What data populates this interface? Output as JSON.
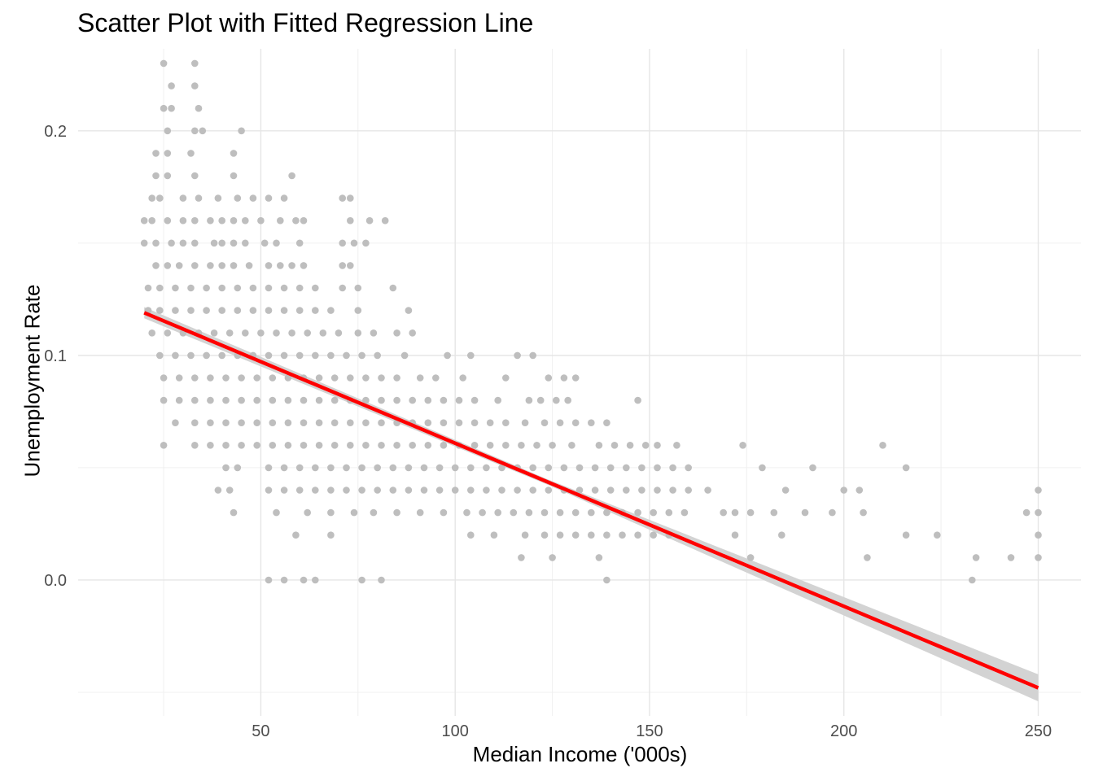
{
  "chart_data": {
    "type": "scatter",
    "title": "Scatter Plot with Fitted Regression Line",
    "xlabel": "Median Income ('000s)",
    "ylabel": "Unemployment Rate",
    "xlim": [
      3,
      261
    ],
    "ylim": [
      -0.0605,
      0.2365
    ],
    "x_ticks": [
      50,
      100,
      150,
      200,
      250
    ],
    "y_ticks": [
      0.0,
      0.1,
      0.2
    ],
    "x_tick_labels": [
      "50",
      "100",
      "150",
      "200",
      "250"
    ],
    "y_tick_labels": [
      "0.0",
      "0.1",
      "0.2"
    ],
    "grid": true,
    "point_color": "#bebebe",
    "line_color": "#ff0000",
    "band_color": "#d3d3d3",
    "fit": {
      "x_start": 20,
      "y_start": 0.119,
      "x_end": 250,
      "y_end": -0.048,
      "se_start": 0.0025,
      "se_mid": 0.0012,
      "se_end": 0.006
    },
    "points": [
      [
        25,
        0.23
      ],
      [
        33,
        0.23
      ],
      [
        27,
        0.22
      ],
      [
        33,
        0.22
      ],
      [
        25,
        0.21
      ],
      [
        27,
        0.21
      ],
      [
        34,
        0.21
      ],
      [
        26,
        0.2
      ],
      [
        33,
        0.2
      ],
      [
        35,
        0.2
      ],
      [
        45,
        0.2
      ],
      [
        23,
        0.19
      ],
      [
        26,
        0.19
      ],
      [
        32,
        0.19
      ],
      [
        43,
        0.19
      ],
      [
        23,
        0.18
      ],
      [
        26,
        0.18
      ],
      [
        33,
        0.18
      ],
      [
        43,
        0.18
      ],
      [
        58,
        0.18
      ],
      [
        22,
        0.17
      ],
      [
        24,
        0.17
      ],
      [
        30,
        0.17
      ],
      [
        34,
        0.17
      ],
      [
        39,
        0.17
      ],
      [
        44,
        0.17
      ],
      [
        48,
        0.17
      ],
      [
        52,
        0.17
      ],
      [
        56,
        0.17
      ],
      [
        71,
        0.17
      ],
      [
        73,
        0.17
      ],
      [
        20,
        0.16
      ],
      [
        22,
        0.16
      ],
      [
        26,
        0.16
      ],
      [
        30,
        0.16
      ],
      [
        33,
        0.16
      ],
      [
        37,
        0.16
      ],
      [
        40,
        0.16
      ],
      [
        43,
        0.16
      ],
      [
        46,
        0.16
      ],
      [
        50,
        0.16
      ],
      [
        55,
        0.16
      ],
      [
        59,
        0.16
      ],
      [
        61,
        0.16
      ],
      [
        73,
        0.16
      ],
      [
        78,
        0.16
      ],
      [
        82,
        0.16
      ],
      [
        20,
        0.15
      ],
      [
        23,
        0.15
      ],
      [
        27,
        0.15
      ],
      [
        30,
        0.15
      ],
      [
        33,
        0.15
      ],
      [
        38,
        0.15
      ],
      [
        40,
        0.15
      ],
      [
        43,
        0.15
      ],
      [
        46,
        0.15
      ],
      [
        51,
        0.15
      ],
      [
        54,
        0.15
      ],
      [
        60,
        0.15
      ],
      [
        71,
        0.15
      ],
      [
        74,
        0.15
      ],
      [
        77,
        0.15
      ],
      [
        23,
        0.14
      ],
      [
        26,
        0.14
      ],
      [
        29,
        0.14
      ],
      [
        33,
        0.14
      ],
      [
        37,
        0.14
      ],
      [
        40,
        0.14
      ],
      [
        43,
        0.14
      ],
      [
        47,
        0.14
      ],
      [
        52,
        0.14
      ],
      [
        55,
        0.14
      ],
      [
        58,
        0.14
      ],
      [
        61,
        0.14
      ],
      [
        71,
        0.14
      ],
      [
        73,
        0.14
      ],
      [
        21,
        0.13
      ],
      [
        24,
        0.13
      ],
      [
        28,
        0.13
      ],
      [
        32,
        0.13
      ],
      [
        36,
        0.13
      ],
      [
        40,
        0.13
      ],
      [
        44,
        0.13
      ],
      [
        48,
        0.13
      ],
      [
        52,
        0.13
      ],
      [
        56,
        0.13
      ],
      [
        60,
        0.13
      ],
      [
        64,
        0.13
      ],
      [
        71,
        0.13
      ],
      [
        75,
        0.13
      ],
      [
        84,
        0.13
      ],
      [
        21,
        0.12
      ],
      [
        24,
        0.12
      ],
      [
        28,
        0.12
      ],
      [
        32,
        0.12
      ],
      [
        36,
        0.12
      ],
      [
        40,
        0.12
      ],
      [
        44,
        0.12
      ],
      [
        48,
        0.12
      ],
      [
        52,
        0.12
      ],
      [
        56,
        0.12
      ],
      [
        60,
        0.12
      ],
      [
        64,
        0.12
      ],
      [
        68,
        0.12
      ],
      [
        75,
        0.12
      ],
      [
        88,
        0.12
      ],
      [
        22,
        0.11
      ],
      [
        26,
        0.11
      ],
      [
        30,
        0.11
      ],
      [
        34,
        0.11
      ],
      [
        38,
        0.11
      ],
      [
        42,
        0.11
      ],
      [
        46,
        0.11
      ],
      [
        50,
        0.11
      ],
      [
        54,
        0.11
      ],
      [
        58,
        0.11
      ],
      [
        62,
        0.11
      ],
      [
        66,
        0.11
      ],
      [
        70,
        0.11
      ],
      [
        75,
        0.11
      ],
      [
        79,
        0.11
      ],
      [
        85,
        0.11
      ],
      [
        89,
        0.11
      ],
      [
        24,
        0.1
      ],
      [
        28,
        0.1
      ],
      [
        32,
        0.1
      ],
      [
        36,
        0.1
      ],
      [
        40,
        0.1
      ],
      [
        44,
        0.1
      ],
      [
        48,
        0.1
      ],
      [
        52,
        0.1
      ],
      [
        56,
        0.1
      ],
      [
        60,
        0.1
      ],
      [
        64,
        0.1
      ],
      [
        68,
        0.1
      ],
      [
        72,
        0.1
      ],
      [
        76,
        0.1
      ],
      [
        80,
        0.1
      ],
      [
        87,
        0.1
      ],
      [
        98,
        0.1
      ],
      [
        104,
        0.1
      ],
      [
        116,
        0.1
      ],
      [
        120,
        0.1
      ],
      [
        25,
        0.09
      ],
      [
        29,
        0.09
      ],
      [
        33,
        0.09
      ],
      [
        37,
        0.09
      ],
      [
        41,
        0.09
      ],
      [
        45,
        0.09
      ],
      [
        49,
        0.09
      ],
      [
        53,
        0.09
      ],
      [
        57,
        0.09
      ],
      [
        61,
        0.09
      ],
      [
        65,
        0.09
      ],
      [
        69,
        0.09
      ],
      [
        73,
        0.09
      ],
      [
        77,
        0.09
      ],
      [
        81,
        0.09
      ],
      [
        85,
        0.09
      ],
      [
        91,
        0.09
      ],
      [
        95,
        0.09
      ],
      [
        102,
        0.09
      ],
      [
        113,
        0.09
      ],
      [
        124,
        0.09
      ],
      [
        128,
        0.09
      ],
      [
        131,
        0.09
      ],
      [
        25,
        0.08
      ],
      [
        29,
        0.08
      ],
      [
        33,
        0.08
      ],
      [
        37,
        0.08
      ],
      [
        41,
        0.08
      ],
      [
        45,
        0.08
      ],
      [
        49,
        0.08
      ],
      [
        53,
        0.08
      ],
      [
        57,
        0.08
      ],
      [
        61,
        0.08
      ],
      [
        65,
        0.08
      ],
      [
        69,
        0.08
      ],
      [
        73,
        0.08
      ],
      [
        77,
        0.08
      ],
      [
        81,
        0.08
      ],
      [
        85,
        0.08
      ],
      [
        89,
        0.08
      ],
      [
        93,
        0.08
      ],
      [
        97,
        0.08
      ],
      [
        101,
        0.08
      ],
      [
        105,
        0.08
      ],
      [
        111,
        0.08
      ],
      [
        119,
        0.08
      ],
      [
        122,
        0.08
      ],
      [
        126,
        0.08
      ],
      [
        129,
        0.08
      ],
      [
        147,
        0.08
      ],
      [
        28,
        0.07
      ],
      [
        33,
        0.07
      ],
      [
        37,
        0.07
      ],
      [
        41,
        0.07
      ],
      [
        45,
        0.07
      ],
      [
        49,
        0.07
      ],
      [
        53,
        0.07
      ],
      [
        57,
        0.07
      ],
      [
        61,
        0.07
      ],
      [
        65,
        0.07
      ],
      [
        69,
        0.07
      ],
      [
        73,
        0.07
      ],
      [
        77,
        0.07
      ],
      [
        81,
        0.07
      ],
      [
        85,
        0.07
      ],
      [
        89,
        0.07
      ],
      [
        93,
        0.07
      ],
      [
        97,
        0.07
      ],
      [
        101,
        0.07
      ],
      [
        105,
        0.07
      ],
      [
        109,
        0.07
      ],
      [
        113,
        0.07
      ],
      [
        118,
        0.07
      ],
      [
        123,
        0.07
      ],
      [
        127,
        0.07
      ],
      [
        131,
        0.07
      ],
      [
        135,
        0.07
      ],
      [
        139,
        0.07
      ],
      [
        25,
        0.06
      ],
      [
        33,
        0.06
      ],
      [
        37,
        0.06
      ],
      [
        41,
        0.06
      ],
      [
        45,
        0.06
      ],
      [
        49,
        0.06
      ],
      [
        53,
        0.06
      ],
      [
        57,
        0.06
      ],
      [
        61,
        0.06
      ],
      [
        65,
        0.06
      ],
      [
        69,
        0.06
      ],
      [
        73,
        0.06
      ],
      [
        77,
        0.06
      ],
      [
        81,
        0.06
      ],
      [
        85,
        0.06
      ],
      [
        89,
        0.06
      ],
      [
        93,
        0.06
      ],
      [
        97,
        0.06
      ],
      [
        101,
        0.06
      ],
      [
        105,
        0.06
      ],
      [
        109,
        0.06
      ],
      [
        113,
        0.06
      ],
      [
        117,
        0.06
      ],
      [
        121,
        0.06
      ],
      [
        125,
        0.06
      ],
      [
        130,
        0.06
      ],
      [
        137,
        0.06
      ],
      [
        141,
        0.06
      ],
      [
        145,
        0.06
      ],
      [
        149,
        0.06
      ],
      [
        152,
        0.06
      ],
      [
        157,
        0.06
      ],
      [
        174,
        0.06
      ],
      [
        210,
        0.06
      ],
      [
        41,
        0.05
      ],
      [
        44,
        0.05
      ],
      [
        52,
        0.05
      ],
      [
        56,
        0.05
      ],
      [
        60,
        0.05
      ],
      [
        64,
        0.05
      ],
      [
        68,
        0.05
      ],
      [
        72,
        0.05
      ],
      [
        76,
        0.05
      ],
      [
        80,
        0.05
      ],
      [
        84,
        0.05
      ],
      [
        88,
        0.05
      ],
      [
        92,
        0.05
      ],
      [
        96,
        0.05
      ],
      [
        100,
        0.05
      ],
      [
        104,
        0.05
      ],
      [
        108,
        0.05
      ],
      [
        112,
        0.05
      ],
      [
        116,
        0.05
      ],
      [
        120,
        0.05
      ],
      [
        124,
        0.05
      ],
      [
        128,
        0.05
      ],
      [
        132,
        0.05
      ],
      [
        136,
        0.05
      ],
      [
        140,
        0.05
      ],
      [
        144,
        0.05
      ],
      [
        148,
        0.05
      ],
      [
        152,
        0.05
      ],
      [
        156,
        0.05
      ],
      [
        160,
        0.05
      ],
      [
        179,
        0.05
      ],
      [
        192,
        0.05
      ],
      [
        216,
        0.05
      ],
      [
        39,
        0.04
      ],
      [
        42,
        0.04
      ],
      [
        52,
        0.04
      ],
      [
        56,
        0.04
      ],
      [
        60,
        0.04
      ],
      [
        64,
        0.04
      ],
      [
        68,
        0.04
      ],
      [
        72,
        0.04
      ],
      [
        76,
        0.04
      ],
      [
        80,
        0.04
      ],
      [
        84,
        0.04
      ],
      [
        88,
        0.04
      ],
      [
        92,
        0.04
      ],
      [
        96,
        0.04
      ],
      [
        100,
        0.04
      ],
      [
        104,
        0.04
      ],
      [
        108,
        0.04
      ],
      [
        112,
        0.04
      ],
      [
        116,
        0.04
      ],
      [
        120,
        0.04
      ],
      [
        124,
        0.04
      ],
      [
        128,
        0.04
      ],
      [
        132,
        0.04
      ],
      [
        136,
        0.04
      ],
      [
        140,
        0.04
      ],
      [
        144,
        0.04
      ],
      [
        148,
        0.04
      ],
      [
        152,
        0.04
      ],
      [
        156,
        0.04
      ],
      [
        160,
        0.04
      ],
      [
        165,
        0.04
      ],
      [
        185,
        0.04
      ],
      [
        200,
        0.04
      ],
      [
        204,
        0.04
      ],
      [
        250,
        0.04
      ],
      [
        43,
        0.03
      ],
      [
        54,
        0.03
      ],
      [
        62,
        0.03
      ],
      [
        68,
        0.03
      ],
      [
        74,
        0.03
      ],
      [
        79,
        0.03
      ],
      [
        85,
        0.03
      ],
      [
        91,
        0.03
      ],
      [
        97,
        0.03
      ],
      [
        103,
        0.03
      ],
      [
        107,
        0.03
      ],
      [
        111,
        0.03
      ],
      [
        115,
        0.03
      ],
      [
        119,
        0.03
      ],
      [
        123,
        0.03
      ],
      [
        127,
        0.03
      ],
      [
        131,
        0.03
      ],
      [
        135,
        0.03
      ],
      [
        139,
        0.03
      ],
      [
        143,
        0.03
      ],
      [
        147,
        0.03
      ],
      [
        151,
        0.03
      ],
      [
        155,
        0.03
      ],
      [
        159,
        0.03
      ],
      [
        169,
        0.03
      ],
      [
        172,
        0.03
      ],
      [
        176,
        0.03
      ],
      [
        182,
        0.03
      ],
      [
        190,
        0.03
      ],
      [
        197,
        0.03
      ],
      [
        205,
        0.03
      ],
      [
        247,
        0.03
      ],
      [
        250,
        0.03
      ],
      [
        59,
        0.02
      ],
      [
        68,
        0.02
      ],
      [
        104,
        0.02
      ],
      [
        110,
        0.02
      ],
      [
        118,
        0.02
      ],
      [
        123,
        0.02
      ],
      [
        127,
        0.02
      ],
      [
        131,
        0.02
      ],
      [
        135,
        0.02
      ],
      [
        139,
        0.02
      ],
      [
        143,
        0.02
      ],
      [
        147,
        0.02
      ],
      [
        151,
        0.02
      ],
      [
        155,
        0.02
      ],
      [
        172,
        0.02
      ],
      [
        184,
        0.02
      ],
      [
        216,
        0.02
      ],
      [
        224,
        0.02
      ],
      [
        250,
        0.02
      ],
      [
        117,
        0.01
      ],
      [
        125,
        0.01
      ],
      [
        137,
        0.01
      ],
      [
        176,
        0.01
      ],
      [
        206,
        0.01
      ],
      [
        234,
        0.01
      ],
      [
        243,
        0.01
      ],
      [
        250,
        0.01
      ],
      [
        52,
        0.0
      ],
      [
        56,
        0.0
      ],
      [
        61,
        0.0
      ],
      [
        64,
        0.0
      ],
      [
        76,
        0.0
      ],
      [
        81,
        0.0
      ],
      [
        139,
        0.0
      ],
      [
        233,
        0.0
      ]
    ]
  }
}
